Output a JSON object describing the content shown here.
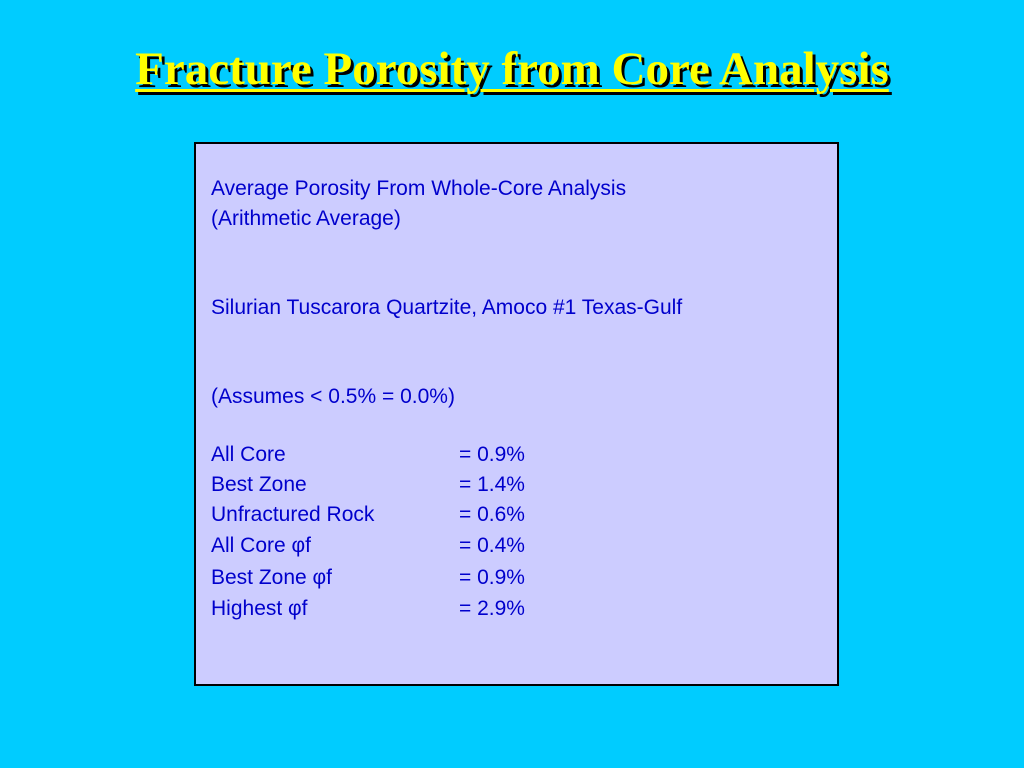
{
  "title": "Fracture Porosity from Core Analysis",
  "box": {
    "heading": [
      "Average Porosity From Whole-Core Analysis",
      "(Arithmetic Average)"
    ],
    "location": "Silurian Tuscarora Quartzite, Amoco #1 Texas-Gulf",
    "assumption": "(Assumes < 0.5% = 0.0%)",
    "rows": [
      [
        "All Core",
        "= 0.9%"
      ],
      [
        "Best Zone",
        "= 1.4%"
      ],
      [
        "Unfractured Rock",
        "= 0.6%"
      ],
      [
        "All Core φf",
        "= 0.4%"
      ],
      [
        "Best Zone φf",
        "= 0.9%"
      ],
      [
        "Highest φf",
        "= 2.9%"
      ]
    ]
  }
}
